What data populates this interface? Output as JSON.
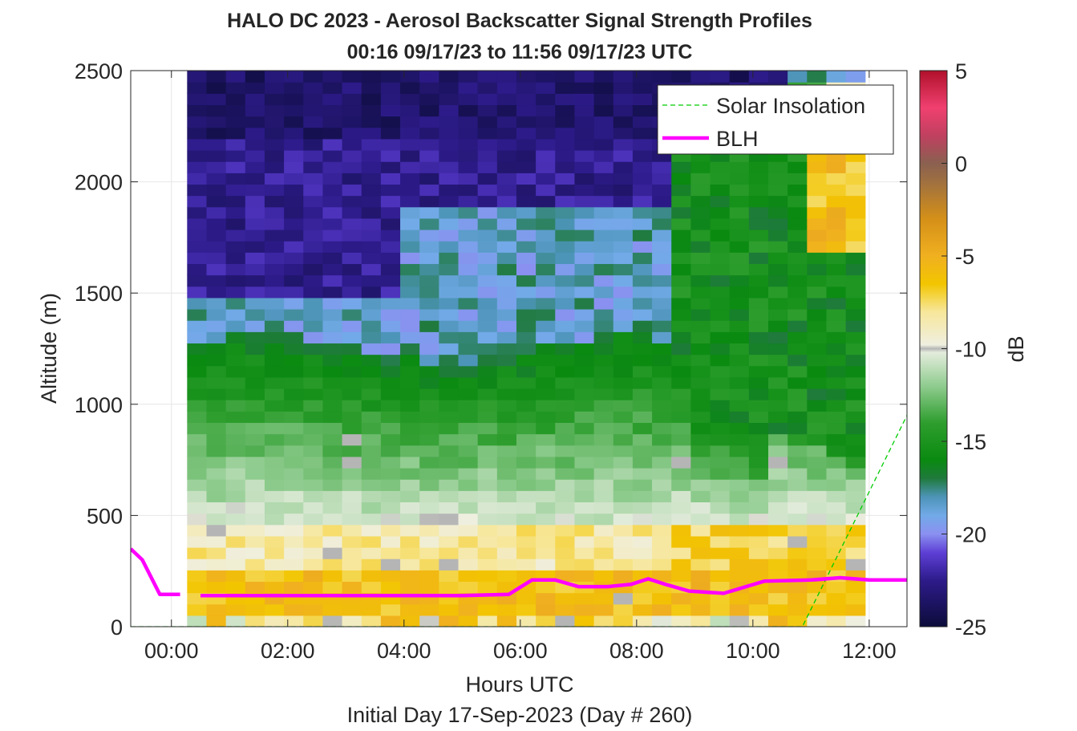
{
  "chart_data": {
    "type": "heatmap",
    "title": "HALO DC 2023 - Aerosol Backscatter Signal Strength Profiles",
    "subtitle": "00:16 09/17/23 to 11:56 09/17/23  UTC",
    "xlabel": "Hours UTC",
    "x_sublabel": "Initial Day 17-Sep-2023 (Day # 260)",
    "ylabel": "Altitude (m)",
    "colorbar_label": "dB",
    "xlim": [
      -0.7,
      12.65
    ],
    "ylim": [
      0,
      2500
    ],
    "clim": [
      -25,
      5
    ],
    "x_ticks": [
      0,
      2,
      4,
      6,
      8,
      10,
      12
    ],
    "x_tick_labels": [
      "00:00",
      "02:00",
      "04:00",
      "06:00",
      "08:00",
      "10:00",
      "12:00"
    ],
    "y_ticks": [
      0,
      500,
      1000,
      1500,
      2000,
      2500
    ],
    "y_tick_labels": [
      "0",
      "500",
      "1000",
      "1500",
      "2000",
      "2500"
    ],
    "colorbar_ticks": [
      5,
      0,
      -5,
      -10,
      -15,
      -20,
      -25
    ],
    "colorbar_tick_labels": [
      "5",
      "0",
      "-5",
      "-10",
      "-15",
      "-20",
      "-25"
    ],
    "grid": true,
    "legend_position": "top-right",
    "colormap": [
      [
        -25,
        "#0c0c3a"
      ],
      [
        -22.5,
        "#2d1b8a"
      ],
      [
        -21,
        "#5e3fd6"
      ],
      [
        -20,
        "#8a90f0"
      ],
      [
        -19,
        "#72aae8"
      ],
      [
        -18,
        "#4d94b8"
      ],
      [
        -17,
        "#1f7a3c"
      ],
      [
        -16,
        "#0a8a10"
      ],
      [
        -14,
        "#2e9e2e"
      ],
      [
        -12,
        "#90cc90"
      ],
      [
        -10.2,
        "#e4ecdc"
      ],
      [
        -10,
        "#b5b5b5"
      ],
      [
        -9.8,
        "#efefe0"
      ],
      [
        -8,
        "#f7e79a"
      ],
      [
        -6.5,
        "#f2c500"
      ],
      [
        -5,
        "#f0b020"
      ],
      [
        -3,
        "#d49018"
      ],
      [
        -1,
        "#a07040"
      ],
      [
        0,
        "#8a6050"
      ],
      [
        1.5,
        "#c04060"
      ],
      [
        3,
        "#f04070"
      ],
      [
        5,
        "#b0102a"
      ]
    ],
    "heatmap_x_range": [
      0.27,
      11.93
    ],
    "heatmap_y_range": [
      0,
      2500
    ],
    "series": [
      {
        "name": "Solar Insolation",
        "color": "#00cc00",
        "style": "dashed",
        "x": [
          -0.7,
          10.85,
          12.65
        ],
        "y": [
          0,
          0,
          950
        ]
      },
      {
        "name": "BLH",
        "color": "#ff00ff",
        "style": "solid",
        "x": [
          -0.7,
          -0.5,
          -0.2,
          0.15,
          null,
          0.5,
          1.0,
          2.0,
          3.0,
          4.0,
          5.0,
          5.8,
          6.2,
          6.6,
          7.0,
          7.5,
          7.9,
          8.2,
          8.5,
          8.9,
          9.5,
          10.2,
          11.0,
          11.5,
          12.0,
          12.65
        ],
        "y": [
          350,
          300,
          145,
          145,
          null,
          140,
          140,
          140,
          140,
          140,
          140,
          145,
          210,
          210,
          180,
          180,
          190,
          215,
          190,
          160,
          150,
          205,
          210,
          220,
          210,
          210
        ]
      }
    ]
  }
}
